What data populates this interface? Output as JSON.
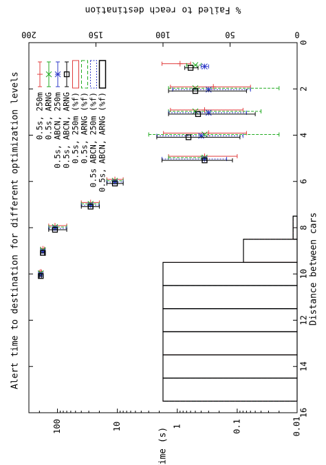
{
  "chart_data": {
    "type": "scatter",
    "title": "Alert time to destination for different optimization levels",
    "xlabel": "Distance between cars",
    "ylabel": "Time (s)",
    "y2label": "% Failed to reach destination",
    "xlim": [
      0,
      16
    ],
    "ylim": [
      0.01,
      300
    ],
    "y_scale": "log",
    "y2lim": [
      0,
      200
    ],
    "x_ticks": [
      "0",
      "2",
      "4",
      "6",
      "8",
      "10",
      "12",
      "14",
      "16"
    ],
    "y_ticks": [
      "0.01",
      "0.1",
      "1",
      "10",
      "100"
    ],
    "y2_ticks": [
      "0",
      "50",
      "100",
      "150",
      "200"
    ],
    "grid": false,
    "legend_position": "top-right",
    "legend": [
      "0.5s, 250m",
      "0.5s, ARNG",
      "0.5s, ABCN, 250m",
      "0.5s, ABCN, ARNG",
      "0.5s, 250m (%f)",
      "0.5s, ARNG (%f)",
      "0.5s ABCN, 250m (%f)",
      "0.5s, ABCN, ARNG (%f)"
    ],
    "series": [
      {
        "name": "0.5s, 250m",
        "marker": "plus",
        "color": "#e03c3c",
        "x": [
          1,
          2,
          3,
          4,
          5,
          6,
          7,
          8,
          9,
          10
        ],
        "y": [
          0.9,
          0.25,
          0.35,
          0.3,
          0.35,
          11,
          28,
          110,
          175,
          190
        ],
        "ylo": [
          0.6,
          0.06,
          0.08,
          0.07,
          0.1,
          8,
          20,
          70,
          165,
          185
        ],
        "yhi": [
          1.8,
          1.3,
          1.3,
          1.7,
          1.4,
          15,
          40,
          140,
          190,
          200
        ]
      },
      {
        "name": "0.5s, ARNG",
        "marker": "x",
        "color": "#1faa1f",
        "x": [
          1,
          2,
          3,
          4,
          5,
          6,
          7,
          8,
          9,
          10
        ],
        "y": [
          0.5,
          0.5,
          0.5,
          0.35,
          0.35,
          11,
          28,
          110,
          175,
          190
        ],
        "ylo": [
          0.4,
          0.02,
          0.04,
          0.02,
          0.4,
          8,
          20,
          70,
          165,
          185
        ],
        "yhi": [
          0.7,
          1.4,
          1.4,
          3.0,
          1.4,
          15,
          40,
          140,
          190,
          200
        ]
      },
      {
        "name": "0.5s, ABCN, 250m",
        "marker": "star",
        "color": "#2d39c9",
        "x": [
          1,
          2,
          3,
          4,
          5,
          6,
          7,
          8,
          9,
          10
        ],
        "y": [
          0.35,
          0.3,
          0.3,
          0.4,
          0.35,
          11,
          28,
          110,
          175,
          190
        ],
        "ylo": [
          0.3,
          0.06,
          0.07,
          0.08,
          0.15,
          8,
          20,
          70,
          165,
          185
        ],
        "yhi": [
          0.4,
          1.2,
          1.4,
          2.2,
          1.8,
          15,
          40,
          140,
          190,
          200
        ]
      },
      {
        "name": "0.5s, ABCN, ARNG",
        "marker": "square",
        "color": "#000000",
        "x": [
          1,
          2,
          3,
          4,
          5,
          6,
          7,
          8,
          9,
          10
        ],
        "y": [
          0.6,
          0.5,
          0.45,
          0.65,
          0.35,
          11,
          28,
          110,
          175,
          190
        ],
        "ylo": [
          0.45,
          0.07,
          0.05,
          0.09,
          0.12,
          8,
          20,
          70,
          165,
          185
        ],
        "yhi": [
          0.75,
          1.4,
          1.4,
          2.2,
          1.8,
          15,
          40,
          140,
          190,
          200
        ]
      }
    ],
    "bars": [
      {
        "name": "0.5s, 250m (%f)",
        "color": "#e03c3c",
        "style": "solid",
        "x": [
          8,
          9,
          10,
          11,
          12,
          13,
          14,
          15
        ],
        "values": [
          3,
          40,
          100,
          100,
          100,
          100,
          100,
          100
        ]
      },
      {
        "name": "0.5s, ARNG (%f)",
        "color": "#1faa1f",
        "style": "dashed",
        "x": [
          8,
          9,
          10,
          11,
          12,
          13,
          14,
          15
        ],
        "values": [
          3,
          40,
          100,
          100,
          100,
          100,
          100,
          100
        ]
      },
      {
        "name": "0.5s ABCN, 250m (%f)",
        "color": "#2d39c9",
        "style": "dotted",
        "x": [
          8,
          9,
          10,
          11,
          12,
          13,
          14,
          15
        ],
        "values": [
          3,
          40,
          100,
          100,
          100,
          100,
          100,
          100
        ]
      },
      {
        "name": "0.5s, ABCN, ARNG (%f)",
        "color": "#000000",
        "style": "solid",
        "x": [
          8,
          9,
          10,
          11,
          12,
          13,
          14,
          15
        ],
        "values": [
          3,
          40,
          100,
          100,
          100,
          100,
          100,
          100
        ]
      }
    ]
  }
}
